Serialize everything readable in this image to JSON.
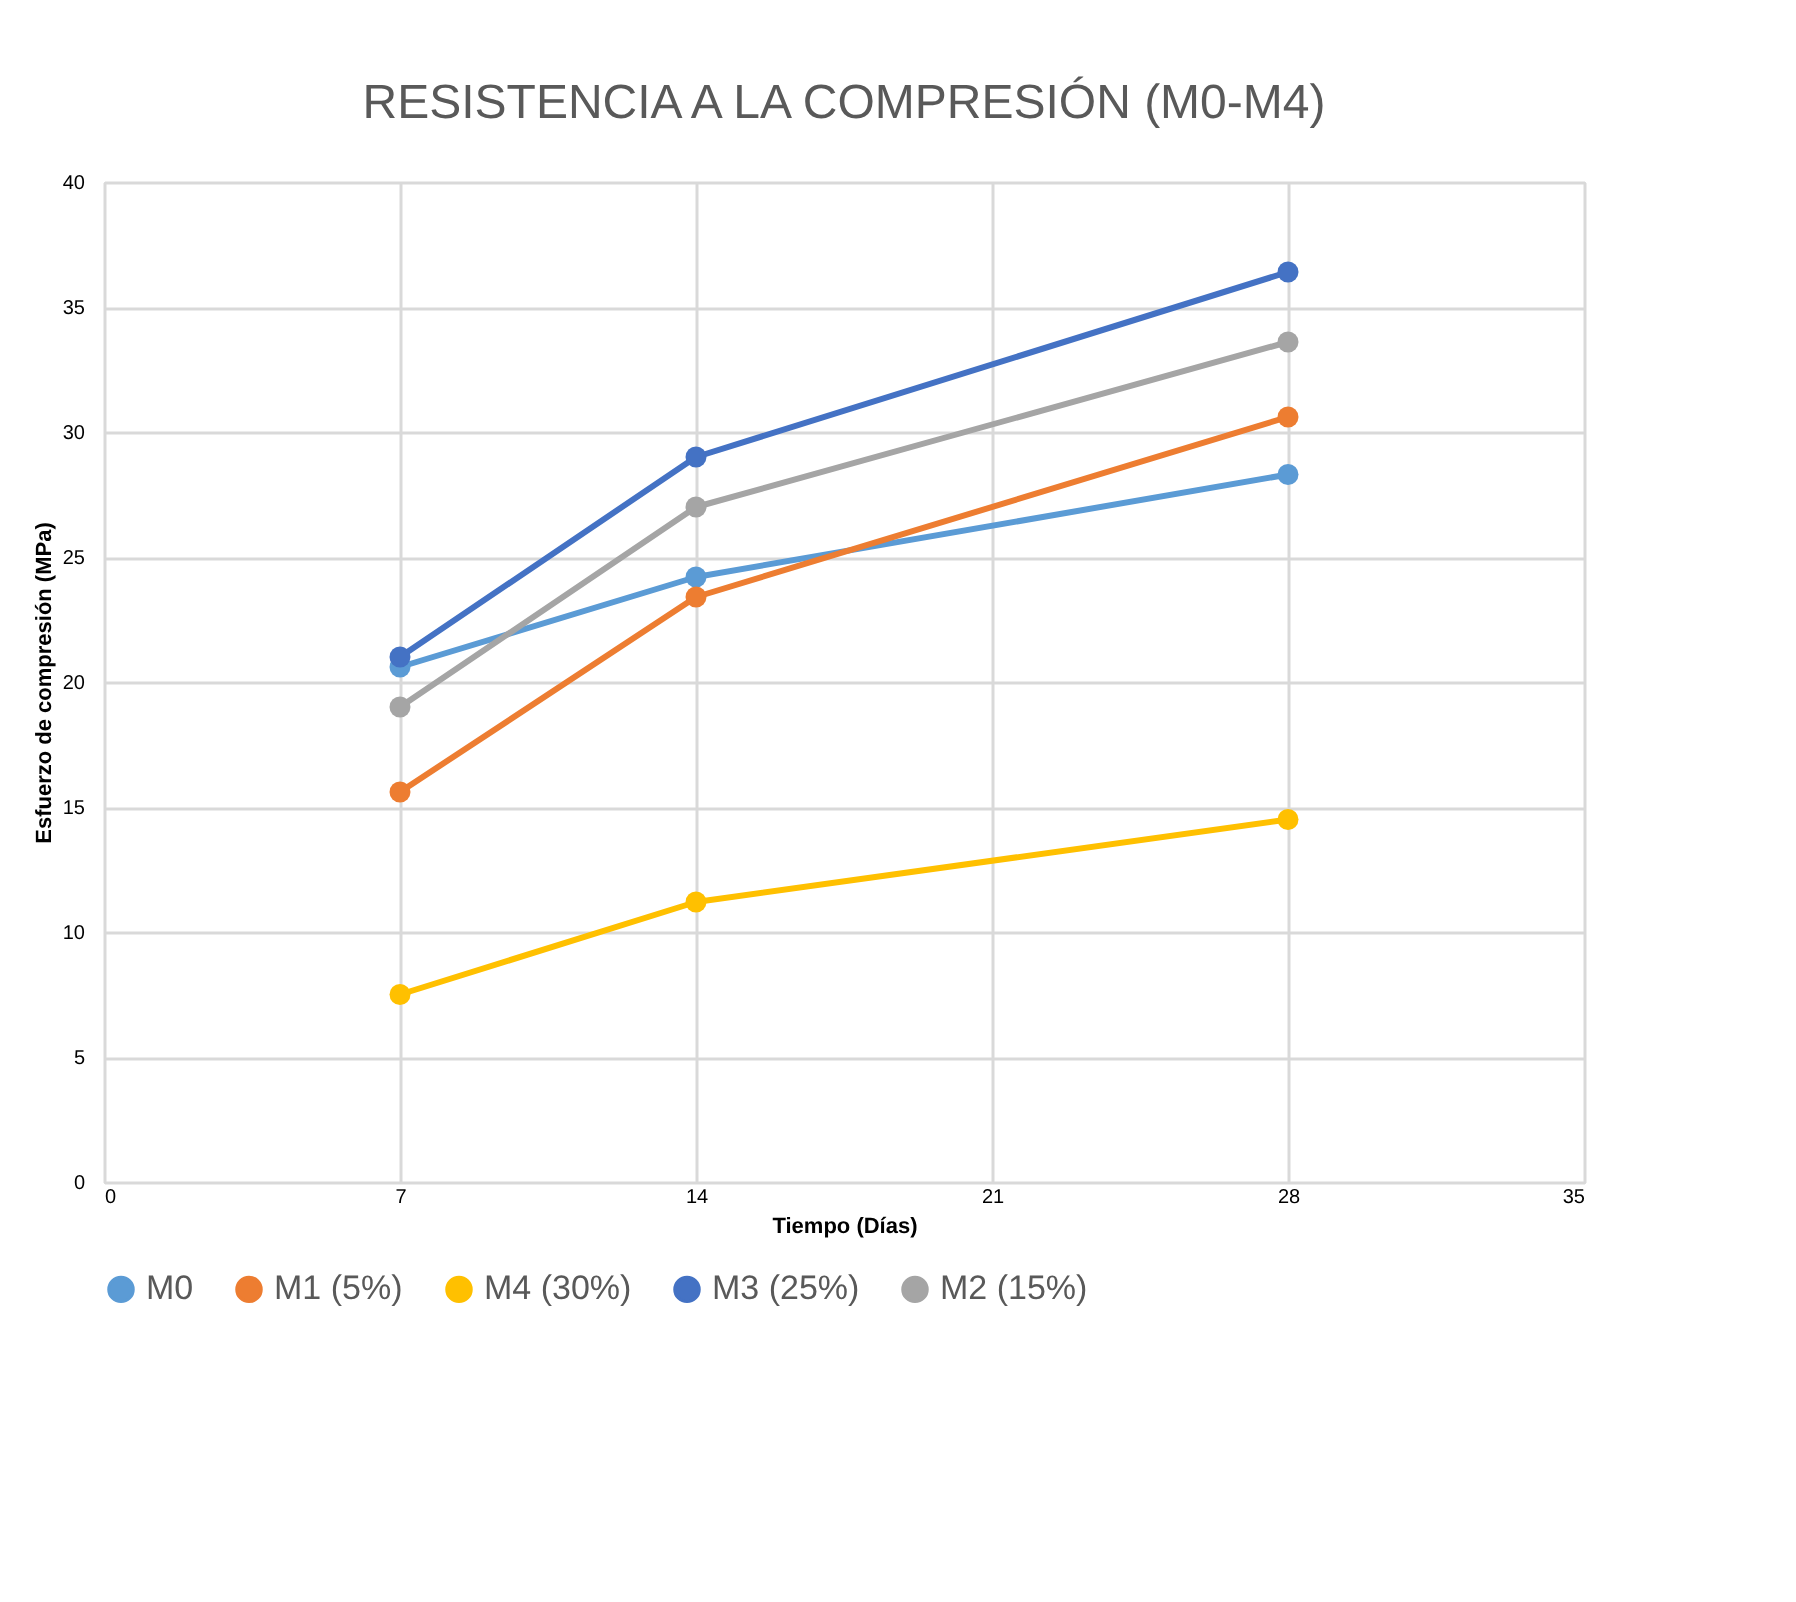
{
  "chart_data": {
    "type": "line",
    "title": "RESISTENCIA A LA COMPRESIÓN (M0-M4)",
    "xlabel": "Tiempo (Días)",
    "ylabel": "Esfuerzo de compresión (MPa)",
    "x": [
      7,
      14,
      28
    ],
    "series": [
      {
        "name": "M0",
        "color": "#5b9bd5",
        "values": [
          20.6,
          24.2,
          28.3
        ]
      },
      {
        "name": "M1 (5%)",
        "color": "#ed7d31",
        "values": [
          15.6,
          23.4,
          30.6
        ]
      },
      {
        "name": "M4 (30%)",
        "color": "#ffc000",
        "values": [
          7.5,
          11.2,
          14.5
        ]
      },
      {
        "name": "M3 (25%)",
        "color": "#4472c4",
        "values": [
          21.0,
          29.0,
          36.4
        ]
      },
      {
        "name": "M2 (15%)",
        "color": "#a5a5a5",
        "values": [
          19.0,
          27.0,
          33.6
        ]
      }
    ],
    "xlim": [
      0,
      35
    ],
    "xticks": [
      0,
      7,
      14,
      21,
      28,
      35
    ],
    "ylim": [
      0,
      40
    ],
    "yticks": [
      0,
      5,
      10,
      15,
      20,
      25,
      30,
      35,
      40
    ],
    "grid": true,
    "legend": "bottom",
    "marker": "circle",
    "line_style": "solid"
  }
}
